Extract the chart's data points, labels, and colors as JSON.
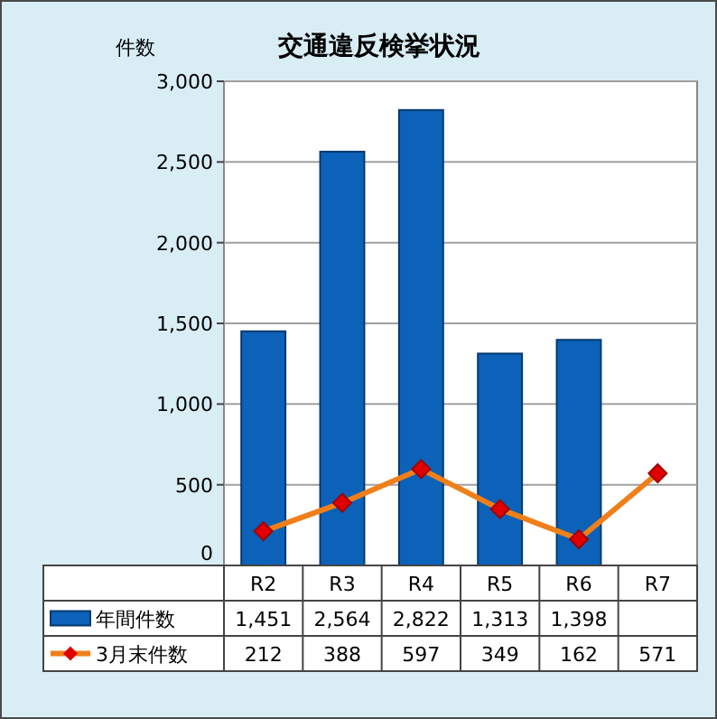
{
  "chart_data": {
    "type": "bar",
    "title": "交通違反検挙状況",
    "ylabel": "件数",
    "categories": [
      "R2",
      "R3",
      "R4",
      "R5",
      "R6",
      "R7"
    ],
    "series": [
      {
        "name": "年間件数",
        "color": "#0b62b8",
        "values": [
          1451,
          2564,
          2822,
          1313,
          1398,
          null
        ],
        "value_labels": [
          "1,451",
          "2,564",
          "2,822",
          "1,313",
          "1,398",
          null
        ]
      },
      {
        "name": "3月末件数",
        "type": "line",
        "color": "#f07f1a",
        "marker": "diamond",
        "values": [
          212,
          388,
          597,
          349,
          162,
          571
        ]
      }
    ],
    "ylim": [
      0,
      3000
    ],
    "yticks": [
      {
        "value": 0,
        "label": "0"
      },
      {
        "value": 500,
        "label": "500"
      },
      {
        "value": 1000,
        "label": "1,000"
      },
      {
        "value": 1500,
        "label": "1,500"
      },
      {
        "value": 2000,
        "label": "2,000"
      },
      {
        "value": 2500,
        "label": "2,500"
      },
      {
        "value": 3000,
        "label": "3,000"
      }
    ],
    "grid": "y",
    "data_labels": true,
    "legend": "bottom left"
  }
}
